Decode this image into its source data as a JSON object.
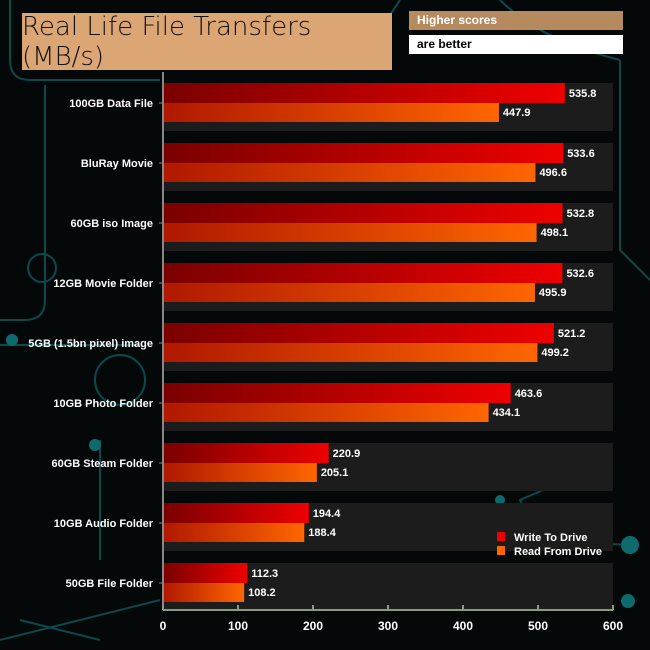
{
  "colors": {
    "write": "#ee0000",
    "read": "#ff6600",
    "title_bg": "#dba673",
    "note_bg": "#b58a5e",
    "circuit": "#0e5a5c"
  },
  "header": {
    "title": "Real Life File Transfers (MB/s)",
    "note_line1": "Higher scores",
    "note_line2": "are better"
  },
  "chart_data": {
    "type": "bar",
    "orientation": "horizontal",
    "title": "Real Life File Transfers (MB/s)",
    "categories": [
      "100GB Data File",
      "BluRay Movie",
      "60GB iso Image",
      "12GB Movie Folder",
      "5GB (1.5bn pixel) image",
      "10GB Photo Folder",
      "60GB Steam Folder",
      "10GB Audio Folder",
      "50GB File Folder"
    ],
    "series": [
      {
        "name": "Write To  Drive",
        "values": [
          535.8,
          533.6,
          532.8,
          532.6,
          521.2,
          463.6,
          220.9,
          194.4,
          112.3
        ]
      },
      {
        "name": "Read From  Drive",
        "values": [
          447.9,
          496.6,
          498.1,
          495.9,
          499.2,
          434.1,
          205.1,
          188.4,
          108.2
        ]
      }
    ],
    "xlim": [
      0,
      600
    ],
    "xticks": [
      "0",
      "100",
      "200",
      "300",
      "400",
      "500",
      "600"
    ],
    "legend": "bottom-right",
    "grid": false
  }
}
